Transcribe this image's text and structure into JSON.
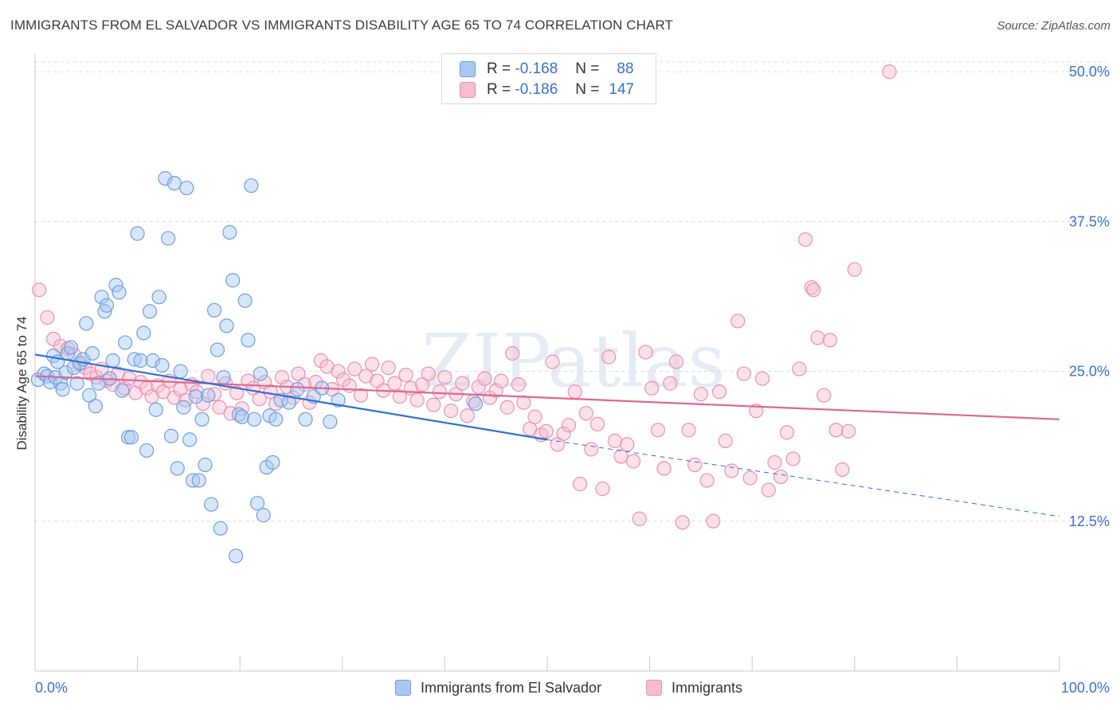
{
  "title": "IMMIGRANTS FROM EL SALVADOR VS IMMIGRANTS DISABILITY AGE 65 TO 74 CORRELATION CHART",
  "source": "Source: ZipAtlas.com",
  "watermark": "ZIPatlas",
  "legend_top": {
    "rows": [
      {
        "r_label": "R =",
        "r_value": "-0.168",
        "n_label": "N =",
        "n_value": "88"
      },
      {
        "r_label": "R =",
        "r_value": "-0.186",
        "n_label": "N =",
        "n_value": "147"
      }
    ]
  },
  "legend_bottom": {
    "items": [
      {
        "label": "Immigrants from El Salvador"
      },
      {
        "label": "Immigrants"
      }
    ]
  },
  "colors": {
    "blue_fill": "#a9c8f2",
    "blue_stroke": "#6d9de0",
    "blue_line": "#2f6fcf",
    "pink_fill": "#f7bcd0",
    "pink_stroke": "#ea8fb0",
    "pink_line": "#e0668f",
    "axis_label": "#3b6fce",
    "grid": "#dcdcdc"
  },
  "chart_data": {
    "type": "scatter",
    "title": "IMMIGRANTS FROM EL SALVADOR VS IMMIGRANTS DISABILITY AGE 65 TO 74 CORRELATION CHART",
    "xlabel": "",
    "ylabel": "Disability Age 65 to 74",
    "xlim": [
      0,
      100
    ],
    "ylim": [
      0,
      52
    ],
    "x_tick_labels": [
      "0.0%",
      "100.0%"
    ],
    "y_ticks": [
      12.5,
      25.0,
      37.5,
      50.0
    ],
    "y_tick_labels": [
      "12.5%",
      "25.0%",
      "37.5%",
      "50.0%"
    ],
    "grid": "horizontal dashed",
    "legend_placement": "top-center and bottom",
    "series": [
      {
        "name": "Immigrants from El Salvador",
        "trend": {
          "x0": 0,
          "y0": 26.4,
          "x1": 50,
          "y1": 19.3,
          "dash_to_x": 100,
          "dash_to_y": 12.9
        },
        "points": [
          [
            0.3,
            24.3
          ],
          [
            0.9,
            24.8
          ],
          [
            1.2,
            24.6
          ],
          [
            1.5,
            24.1
          ],
          [
            1.8,
            26.3
          ],
          [
            2.0,
            24.5
          ],
          [
            2.2,
            25.8
          ],
          [
            2.5,
            24.0
          ],
          [
            2.7,
            23.5
          ],
          [
            3.0,
            24.9
          ],
          [
            3.2,
            26.5
          ],
          [
            3.5,
            27.0
          ],
          [
            3.8,
            25.3
          ],
          [
            4.1,
            24.0
          ],
          [
            4.4,
            25.7
          ],
          [
            4.7,
            26.0
          ],
          [
            5.0,
            29.0
          ],
          [
            5.3,
            23.0
          ],
          [
            5.6,
            26.5
          ],
          [
            5.9,
            22.1
          ],
          [
            6.2,
            24.0
          ],
          [
            6.5,
            31.2
          ],
          [
            6.8,
            30.0
          ],
          [
            7.0,
            30.5
          ],
          [
            7.3,
            24.4
          ],
          [
            7.6,
            25.9
          ],
          [
            7.9,
            32.2
          ],
          [
            8.2,
            31.6
          ],
          [
            8.5,
            23.4
          ],
          [
            8.8,
            27.4
          ],
          [
            9.1,
            19.5
          ],
          [
            9.4,
            19.5
          ],
          [
            9.7,
            26.0
          ],
          [
            10.0,
            36.5
          ],
          [
            10.3,
            25.9
          ],
          [
            10.6,
            28.2
          ],
          [
            10.9,
            18.4
          ],
          [
            11.2,
            30.0
          ],
          [
            11.5,
            25.9
          ],
          [
            11.8,
            21.8
          ],
          [
            12.1,
            31.2
          ],
          [
            12.4,
            25.5
          ],
          [
            12.7,
            41.1
          ],
          [
            13.0,
            36.1
          ],
          [
            13.3,
            19.6
          ],
          [
            13.6,
            40.7
          ],
          [
            13.9,
            16.9
          ],
          [
            14.2,
            25.0
          ],
          [
            14.5,
            22.0
          ],
          [
            14.8,
            40.3
          ],
          [
            15.1,
            19.3
          ],
          [
            15.4,
            15.9
          ],
          [
            15.7,
            22.9
          ],
          [
            16.0,
            15.9
          ],
          [
            16.3,
            21.0
          ],
          [
            16.6,
            17.2
          ],
          [
            16.9,
            23.0
          ],
          [
            17.2,
            13.9
          ],
          [
            17.5,
            30.1
          ],
          [
            17.8,
            26.8
          ],
          [
            18.1,
            11.9
          ],
          [
            18.4,
            24.5
          ],
          [
            18.7,
            28.8
          ],
          [
            19.0,
            36.6
          ],
          [
            19.3,
            32.6
          ],
          [
            19.6,
            9.6
          ],
          [
            19.9,
            21.4
          ],
          [
            20.2,
            21.2
          ],
          [
            20.5,
            30.9
          ],
          [
            20.8,
            27.6
          ],
          [
            21.1,
            40.5
          ],
          [
            21.4,
            21.0
          ],
          [
            21.7,
            14.0
          ],
          [
            22.0,
            24.8
          ],
          [
            22.3,
            13.0
          ],
          [
            22.6,
            17.0
          ],
          [
            22.9,
            21.3
          ],
          [
            23.2,
            17.4
          ],
          [
            23.5,
            21.0
          ],
          [
            24.0,
            22.6
          ],
          [
            24.8,
            22.4
          ],
          [
            25.6,
            23.5
          ],
          [
            26.4,
            21.0
          ],
          [
            27.2,
            22.9
          ],
          [
            28.0,
            23.6
          ],
          [
            28.8,
            20.8
          ],
          [
            29.6,
            22.6
          ],
          [
            43.0,
            22.3
          ]
        ]
      },
      {
        "name": "Immigrants",
        "trend": {
          "x0": 0,
          "y0": 24.6,
          "x1": 100,
          "y1": 21.0
        },
        "points": [
          [
            0.4,
            31.8
          ],
          [
            1.2,
            29.5
          ],
          [
            1.8,
            27.7
          ],
          [
            2.5,
            27.1
          ],
          [
            3.2,
            26.9
          ],
          [
            3.8,
            26.4
          ],
          [
            4.3,
            25.6
          ],
          [
            4.9,
            25.3
          ],
          [
            5.4,
            24.8
          ],
          [
            6.0,
            24.5
          ],
          [
            6.5,
            25.2
          ],
          [
            7.0,
            24.2
          ],
          [
            7.6,
            23.9
          ],
          [
            8.1,
            24.8
          ],
          [
            8.7,
            23.6
          ],
          [
            9.2,
            24.4
          ],
          [
            9.8,
            23.2
          ],
          [
            10.3,
            24.1
          ],
          [
            10.9,
            23.6
          ],
          [
            11.4,
            22.9
          ],
          [
            12.0,
            23.8
          ],
          [
            12.5,
            23.3
          ],
          [
            13.1,
            24.2
          ],
          [
            13.6,
            22.8
          ],
          [
            14.2,
            23.5
          ],
          [
            14.7,
            22.6
          ],
          [
            15.3,
            23.9
          ],
          [
            15.8,
            23.3
          ],
          [
            16.4,
            22.3
          ],
          [
            16.9,
            24.6
          ],
          [
            17.5,
            23.1
          ],
          [
            18.0,
            22.0
          ],
          [
            18.6,
            24.0
          ],
          [
            19.1,
            21.5
          ],
          [
            19.7,
            23.2
          ],
          [
            20.2,
            21.9
          ],
          [
            20.8,
            24.2
          ],
          [
            21.3,
            23.6
          ],
          [
            21.9,
            22.7
          ],
          [
            22.4,
            24.1
          ],
          [
            23.0,
            23.3
          ],
          [
            23.5,
            22.3
          ],
          [
            24.1,
            24.5
          ],
          [
            24.6,
            23.7
          ],
          [
            25.2,
            22.8
          ],
          [
            25.7,
            24.8
          ],
          [
            26.3,
            23.9
          ],
          [
            26.8,
            22.4
          ],
          [
            27.4,
            24.1
          ],
          [
            27.9,
            25.9
          ],
          [
            28.5,
            25.4
          ],
          [
            29.0,
            23.5
          ],
          [
            29.6,
            25.0
          ],
          [
            30.1,
            24.3
          ],
          [
            30.7,
            23.8
          ],
          [
            31.2,
            25.2
          ],
          [
            31.8,
            23.0
          ],
          [
            32.3,
            24.6
          ],
          [
            32.9,
            25.6
          ],
          [
            33.4,
            24.2
          ],
          [
            34.0,
            23.4
          ],
          [
            34.5,
            25.3
          ],
          [
            35.1,
            24.0
          ],
          [
            35.6,
            22.9
          ],
          [
            36.2,
            24.7
          ],
          [
            36.7,
            23.6
          ],
          [
            37.3,
            22.6
          ],
          [
            37.8,
            23.9
          ],
          [
            38.4,
            24.8
          ],
          [
            38.9,
            22.2
          ],
          [
            39.5,
            23.3
          ],
          [
            40.0,
            24.5
          ],
          [
            40.6,
            21.7
          ],
          [
            41.1,
            23.1
          ],
          [
            41.7,
            24.0
          ],
          [
            42.2,
            21.3
          ],
          [
            42.8,
            22.5
          ],
          [
            43.3,
            23.7
          ],
          [
            43.9,
            24.4
          ],
          [
            44.4,
            22.8
          ],
          [
            45.0,
            23.4
          ],
          [
            45.5,
            24.2
          ],
          [
            46.1,
            22.0
          ],
          [
            46.6,
            26.5
          ],
          [
            47.2,
            23.9
          ],
          [
            47.7,
            22.4
          ],
          [
            48.3,
            20.2
          ],
          [
            48.8,
            21.2
          ],
          [
            49.4,
            19.7
          ],
          [
            49.9,
            20.0
          ],
          [
            50.5,
            25.8
          ],
          [
            51.0,
            18.9
          ],
          [
            51.6,
            19.8
          ],
          [
            52.1,
            20.5
          ],
          [
            52.7,
            23.3
          ],
          [
            53.2,
            15.6
          ],
          [
            53.8,
            21.5
          ],
          [
            54.3,
            18.5
          ],
          [
            54.9,
            20.6
          ],
          [
            55.4,
            15.2
          ],
          [
            56.0,
            26.2
          ],
          [
            56.6,
            19.2
          ],
          [
            57.2,
            17.9
          ],
          [
            57.8,
            18.9
          ],
          [
            58.4,
            17.5
          ],
          [
            59.0,
            12.7
          ],
          [
            59.6,
            26.6
          ],
          [
            60.2,
            23.6
          ],
          [
            60.8,
            20.1
          ],
          [
            61.4,
            16.9
          ],
          [
            62.0,
            24.0
          ],
          [
            62.6,
            25.8
          ],
          [
            63.2,
            12.4
          ],
          [
            63.8,
            20.1
          ],
          [
            64.4,
            17.2
          ],
          [
            65.0,
            23.1
          ],
          [
            65.6,
            15.9
          ],
          [
            66.2,
            12.5
          ],
          [
            66.8,
            23.3
          ],
          [
            67.4,
            19.2
          ],
          [
            68.0,
            16.7
          ],
          [
            68.6,
            29.2
          ],
          [
            69.2,
            24.8
          ],
          [
            69.8,
            16.1
          ],
          [
            70.4,
            21.7
          ],
          [
            71.0,
            24.4
          ],
          [
            71.6,
            15.1
          ],
          [
            72.2,
            17.4
          ],
          [
            72.8,
            16.2
          ],
          [
            73.4,
            19.9
          ],
          [
            74.0,
            17.7
          ],
          [
            74.6,
            25.2
          ],
          [
            75.2,
            36.0
          ],
          [
            75.8,
            32.0
          ],
          [
            76.4,
            27.8
          ],
          [
            77.0,
            23.0
          ],
          [
            77.6,
            27.6
          ],
          [
            78.2,
            20.1
          ],
          [
            78.8,
            16.8
          ],
          [
            79.4,
            20.0
          ],
          [
            80.0,
            33.5
          ],
          [
            83.4,
            50.0
          ],
          [
            76.0,
            31.8
          ]
        ]
      }
    ]
  }
}
